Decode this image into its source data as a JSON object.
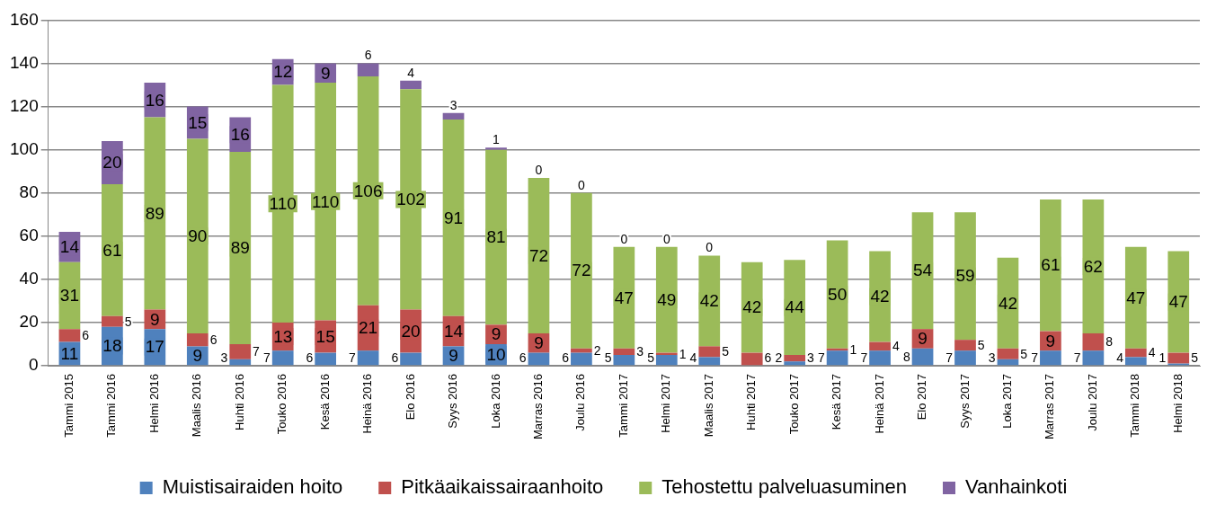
{
  "chart_data": {
    "type": "bar",
    "stacked": true,
    "categories": [
      "Tammi 2015",
      "Tammi 2016",
      "Helmi 2016",
      "Maalis 2016",
      "Huhti 2016",
      "Touko 2016",
      "Kesä 2016",
      "Heinä 2016",
      "Elo 2016",
      "Syys 2016",
      "Loka 2016",
      "Marras 2016",
      "Joulu 2016",
      "Tammi 2017",
      "Helmi 2017",
      "Maalis 2017",
      "Huhti 2017",
      "Touko 2017",
      "Kesä 2017",
      "Heinä 2017",
      "Elo 2017",
      "Syys 2017",
      "Loka 2017",
      "Marras 2017",
      "Joulu 2017",
      "Tammi 2018",
      "Helmi 2018"
    ],
    "series": [
      {
        "name": "Muistisairaiden hoito",
        "color": "#4f81bd",
        "values": [
          11,
          18,
          17,
          9,
          3,
          7,
          6,
          7,
          6,
          9,
          10,
          6,
          6,
          5,
          5,
          4,
          null,
          2,
          7,
          7,
          8,
          7,
          3,
          7,
          7,
          4,
          1
        ]
      },
      {
        "name": "Pitkäaikaissairaanhoito",
        "color": "#c0504d",
        "values": [
          6,
          5,
          9,
          6,
          7,
          13,
          15,
          21,
          20,
          14,
          9,
          9,
          2,
          3,
          1,
          5,
          6,
          3,
          1,
          4,
          9,
          5,
          5,
          9,
          8,
          4,
          5
        ]
      },
      {
        "name": "Tehostettu palveluasuminen",
        "color": "#9bbb59",
        "values": [
          31,
          61,
          89,
          90,
          89,
          110,
          110,
          106,
          102,
          91,
          81,
          72,
          72,
          47,
          49,
          42,
          42,
          44,
          50,
          42,
          54,
          59,
          42,
          61,
          62,
          47,
          47
        ]
      },
      {
        "name": "Vanhainkoti",
        "color": "#8064a2",
        "values": [
          14,
          20,
          16,
          15,
          16,
          12,
          9,
          6,
          4,
          3,
          1,
          0,
          0,
          0,
          0,
          0,
          null,
          null,
          null,
          null,
          null,
          null,
          null,
          null,
          null,
          null,
          null
        ]
      }
    ],
    "ylim": [
      0,
      160
    ],
    "yticks": [
      0,
      20,
      40,
      60,
      80,
      100,
      120,
      140,
      160
    ],
    "grid": "y",
    "legend": "bottom",
    "data_labels": true
  }
}
